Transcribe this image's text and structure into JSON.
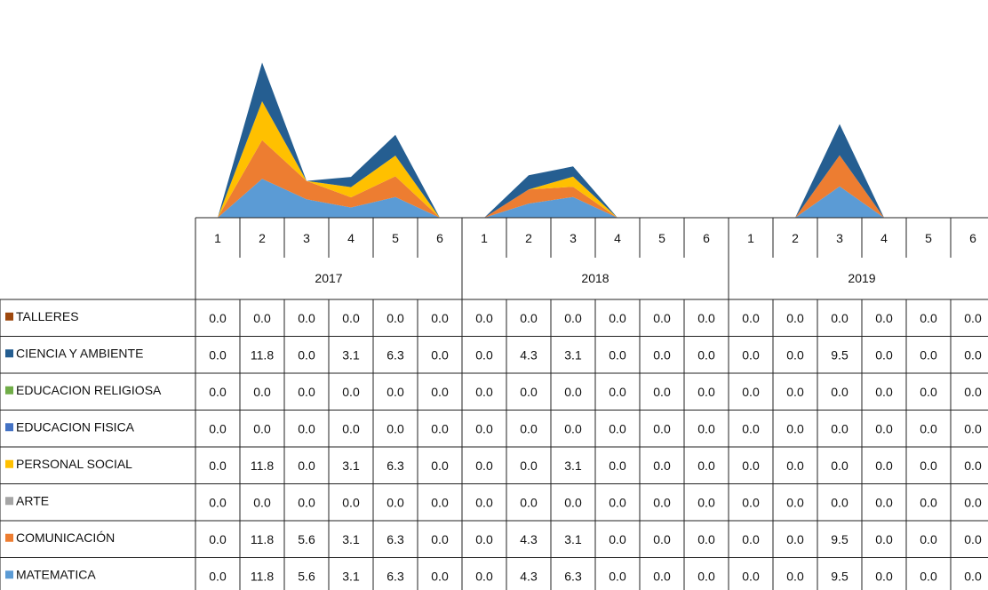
{
  "chart_data": {
    "type": "area",
    "stacked": true,
    "years": [
      {
        "label": "2017",
        "periods": [
          "1",
          "2",
          "3",
          "4",
          "5",
          "6"
        ]
      },
      {
        "label": "2018",
        "periods": [
          "1",
          "2",
          "3",
          "4",
          "5",
          "6"
        ]
      },
      {
        "label": "2019",
        "periods": [
          "1",
          "2",
          "3",
          "4",
          "5",
          "6"
        ]
      }
    ],
    "series": [
      {
        "name": "TALLERES",
        "color": "#9e480e",
        "values": [
          0.0,
          0.0,
          0.0,
          0.0,
          0.0,
          0.0,
          0.0,
          0.0,
          0.0,
          0.0,
          0.0,
          0.0,
          0.0,
          0.0,
          0.0,
          0.0,
          0.0,
          0.0
        ],
        "labels": [
          "0.0",
          "0.0",
          "0.0",
          "0.0",
          "0.0",
          "0.0",
          "0.0",
          "0.0",
          "0.0",
          "0.0",
          "0.0",
          "0.0",
          "0.0",
          "0.0",
          "0.0",
          "0.0",
          "0.0",
          "0.0"
        ]
      },
      {
        "name": "CIENCIA Y AMBIENTE",
        "color": "#255e91",
        "values": [
          0.0,
          11.8,
          0.0,
          3.1,
          6.3,
          0.0,
          0.0,
          4.3,
          3.1,
          0.0,
          0.0,
          0.0,
          0.0,
          0.0,
          9.5,
          0.0,
          0.0,
          0.0
        ],
        "labels": [
          "0.0",
          "11.8",
          "0.0",
          "3.1",
          "6.3",
          "0.0",
          "0.0",
          "4.3",
          "3.1",
          "0.0",
          "0.0",
          "0.0",
          "0.0",
          "0.0",
          "9.5",
          "0.0",
          "0.0",
          "0.0"
        ]
      },
      {
        "name": "EDUCACION RELIGIOSA",
        "color": "#70ad47",
        "values": [
          0.0,
          0.0,
          0.0,
          0.0,
          0.0,
          0.0,
          0.0,
          0.0,
          0.0,
          0.0,
          0.0,
          0.0,
          0.0,
          0.0,
          0.0,
          0.0,
          0.0,
          0.0
        ],
        "labels": [
          "0.0",
          "0.0",
          "0.0",
          "0.0",
          "0.0",
          "0.0",
          "0.0",
          "0.0",
          "0.0",
          "0.0",
          "0.0",
          "0.0",
          "0.0",
          "0.0",
          "0.0",
          "0.0",
          "0.0",
          "0.0"
        ]
      },
      {
        "name": "EDUCACION FISICA",
        "color": "#4472c4",
        "values": [
          0.0,
          0.0,
          0.0,
          0.0,
          0.0,
          0.0,
          0.0,
          0.0,
          0.0,
          0.0,
          0.0,
          0.0,
          0.0,
          0.0,
          0.0,
          0.0,
          0.0,
          0.0
        ],
        "labels": [
          "0.0",
          "0.0",
          "0.0",
          "0.0",
          "0.0",
          "0.0",
          "0.0",
          "0.0",
          "0.0",
          "0.0",
          "0.0",
          "0.0",
          "0.0",
          "0.0",
          "0.0",
          "0.0",
          "0.0",
          "0.0"
        ]
      },
      {
        "name": "PERSONAL SOCIAL",
        "color": "#ffc000",
        "values": [
          0.0,
          11.8,
          0.0,
          3.1,
          6.3,
          0.0,
          0.0,
          0.0,
          3.1,
          0.0,
          0.0,
          0.0,
          0.0,
          0.0,
          0.0,
          0.0,
          0.0,
          0.0
        ],
        "labels": [
          "0.0",
          "11.8",
          "0.0",
          "3.1",
          "6.3",
          "0.0",
          "0.0",
          "0.0",
          "3.1",
          "0.0",
          "0.0",
          "0.0",
          "0.0",
          "0.0",
          "0.0",
          "0.0",
          "0.0",
          "0.0"
        ]
      },
      {
        "name": "ARTE",
        "color": "#a5a5a5",
        "values": [
          0.0,
          0.0,
          0.0,
          0.0,
          0.0,
          0.0,
          0.0,
          0.0,
          0.0,
          0.0,
          0.0,
          0.0,
          0.0,
          0.0,
          0.0,
          0.0,
          0.0,
          0.0
        ],
        "labels": [
          "0.0",
          "0.0",
          "0.0",
          "0.0",
          "0.0",
          "0.0",
          "0.0",
          "0.0",
          "0.0",
          "0.0",
          "0.0",
          "0.0",
          "0.0",
          "0.0",
          "0.0",
          "0.0",
          "0.0",
          "0.0"
        ]
      },
      {
        "name": "COMUNICACIÓN",
        "color": "#ed7d31",
        "values": [
          0.0,
          11.8,
          5.6,
          3.1,
          6.3,
          0.0,
          0.0,
          4.3,
          3.1,
          0.0,
          0.0,
          0.0,
          0.0,
          0.0,
          9.5,
          0.0,
          0.0,
          0.0
        ],
        "labels": [
          "0.0",
          "11.8",
          "5.6",
          "3.1",
          "6.3",
          "0.0",
          "0.0",
          "4.3",
          "3.1",
          "0.0",
          "0.0",
          "0.0",
          "0.0",
          "0.0",
          "9.5",
          "0.0",
          "0.0",
          "0.0"
        ]
      },
      {
        "name": "MATEMATICA",
        "color": "#5b9bd5",
        "values": [
          0.0,
          11.8,
          5.6,
          3.1,
          6.3,
          0.0,
          0.0,
          4.3,
          6.3,
          0.0,
          0.0,
          0.0,
          0.0,
          0.0,
          9.5,
          0.0,
          0.0,
          0.0
        ],
        "labels": [
          "0.0",
          "11.8",
          "5.6",
          "3.1",
          "6.3",
          "0.0",
          "0.0",
          "4.3",
          "6.3",
          "0.0",
          "0.0",
          "0.0",
          "0.0",
          "0.0",
          "9.5",
          "0.0",
          "0.0",
          "0.0"
        ]
      }
    ],
    "stack_order": [
      "MATEMATICA",
      "COMUNICACIÓN",
      "ARTE",
      "PERSONAL SOCIAL",
      "EDUCACION FISICA",
      "EDUCACION RELIGIOSA",
      "CIENCIA Y AMBIENTE",
      "TALLERES"
    ],
    "legend_position": "data-table-left",
    "grid": false
  }
}
